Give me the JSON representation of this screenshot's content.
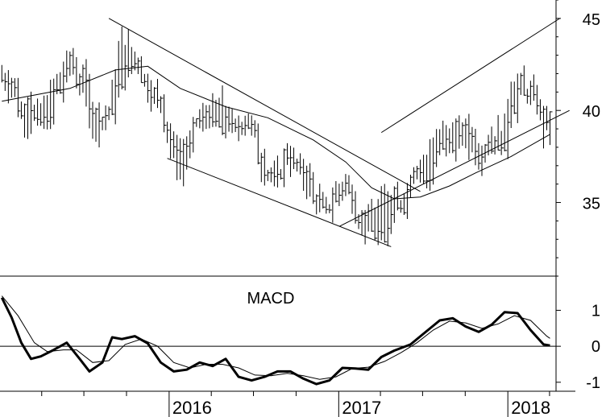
{
  "chart_data": [
    {
      "panel": "price",
      "type": "ohlc",
      "title": "",
      "ylim": [
        31,
        46
      ],
      "y_ticks": [
        35,
        40,
        45
      ],
      "x_range": [
        "2015-01-01",
        "2018-04-15"
      ],
      "price_path": [
        [
          "2015-01-05",
          42.0
        ],
        [
          "2015-02-02",
          40.8
        ],
        [
          "2015-03-02",
          39.2
        ],
        [
          "2015-04-06",
          40.2
        ],
        [
          "2015-05-04",
          41.6
        ],
        [
          "2015-06-01",
          42.8
        ],
        [
          "2015-06-29",
          41.2
        ],
        [
          "2015-07-27",
          38.4
        ],
        [
          "2015-08-24",
          40.0
        ],
        [
          "2015-09-21",
          44.0
        ],
        [
          "2015-10-19",
          43.0
        ],
        [
          "2015-11-16",
          41.2
        ],
        [
          "2015-12-14",
          40.2
        ],
        [
          "2016-01-04",
          37.8
        ],
        [
          "2016-02-01",
          36.6
        ],
        [
          "2016-02-29",
          39.4
        ],
        [
          "2016-03-28",
          39.8
        ],
        [
          "2016-04-25",
          40.5
        ],
        [
          "2016-05-23",
          38.8
        ],
        [
          "2016-06-20",
          39.8
        ],
        [
          "2016-07-18",
          37.0
        ],
        [
          "2016-08-15",
          36.2
        ],
        [
          "2016-09-12",
          37.6
        ],
        [
          "2016-10-10",
          36.6
        ],
        [
          "2016-11-07",
          35.2
        ],
        [
          "2016-12-05",
          34.6
        ],
        [
          "2016-12-26",
          35.6
        ],
        [
          "2017-01-16",
          36.2
        ],
        [
          "2017-02-06",
          34.8
        ],
        [
          "2017-02-27",
          33.2
        ],
        [
          "2017-03-20",
          34.4
        ],
        [
          "2017-04-17",
          35.6
        ],
        [
          "2017-05-15",
          35.2
        ],
        [
          "2017-06-12",
          36.4
        ],
        [
          "2017-07-10",
          37.2
        ],
        [
          "2017-08-07",
          39.0
        ],
        [
          "2017-09-04",
          38.6
        ],
        [
          "2017-10-02",
          38.4
        ],
        [
          "2017-10-30",
          37.6
        ],
        [
          "2017-11-27",
          38.6
        ],
        [
          "2017-12-25",
          39.2
        ],
        [
          "2018-01-08",
          41.6
        ],
        [
          "2018-02-05",
          41.2
        ],
        [
          "2018-03-05",
          40.6
        ],
        [
          "2018-03-19",
          38.5
        ],
        [
          "2018-04-02",
          38.9
        ]
      ],
      "moving_average": [
        [
          "2015-01-05",
          40.5
        ],
        [
          "2015-06-01",
          41.2
        ],
        [
          "2015-09-07",
          42.2
        ],
        [
          "2015-11-16",
          42.4
        ],
        [
          "2016-01-25",
          41.2
        ],
        [
          "2016-05-02",
          40.2
        ],
        [
          "2016-08-01",
          39.6
        ],
        [
          "2016-11-07",
          38.4
        ],
        [
          "2017-01-16",
          37.2
        ],
        [
          "2017-03-13",
          35.8
        ],
        [
          "2017-05-01",
          35.2
        ],
        [
          "2017-06-26",
          35.3
        ],
        [
          "2017-08-28",
          35.9
        ],
        [
          "2017-10-23",
          36.6
        ],
        [
          "2018-01-08",
          37.5
        ],
        [
          "2018-04-02",
          38.7
        ]
      ],
      "trendlines": [
        {
          "name": "downtrend-upper",
          "from": [
            "2015-08-24",
            45.0
          ],
          "to": [
            "2017-06-26",
            35.6
          ]
        },
        {
          "name": "downtrend-lower",
          "from": [
            "2015-12-28",
            37.4
          ],
          "to": [
            "2017-04-24",
            32.6
          ]
        },
        {
          "name": "uptrend-lower",
          "from": [
            "2017-01-02",
            33.7
          ],
          "to": [
            "2018-05-14",
            40.0
          ]
        },
        {
          "name": "uptrend-upper",
          "from": [
            "2017-04-03",
            38.8
          ],
          "to": [
            "2018-04-23",
            45.0
          ]
        }
      ]
    },
    {
      "panel": "macd",
      "type": "line",
      "title": "MACD",
      "ylim": [
        -1.25,
        1.95
      ],
      "y_ticks": [
        1,
        0,
        -1
      ],
      "zero_line": true,
      "series": [
        {
          "role": "macd",
          "points": [
            [
              "2015-01-05",
              1.35
            ],
            [
              "2015-01-26",
              0.8
            ],
            [
              "2015-02-16",
              0.1
            ],
            [
              "2015-03-09",
              -0.35
            ],
            [
              "2015-03-30",
              -0.28
            ],
            [
              "2015-04-27",
              -0.1
            ],
            [
              "2015-05-25",
              0.1
            ],
            [
              "2015-06-22",
              -0.35
            ],
            [
              "2015-07-13",
              -0.7
            ],
            [
              "2015-08-10",
              -0.45
            ],
            [
              "2015-08-31",
              0.25
            ],
            [
              "2015-09-21",
              0.2
            ],
            [
              "2015-10-19",
              0.28
            ],
            [
              "2015-11-16",
              0.08
            ],
            [
              "2015-12-14",
              -0.45
            ],
            [
              "2016-01-11",
              -0.7
            ],
            [
              "2016-02-08",
              -0.65
            ],
            [
              "2016-03-07",
              -0.45
            ],
            [
              "2016-04-04",
              -0.55
            ],
            [
              "2016-05-02",
              -0.35
            ],
            [
              "2016-05-30",
              -0.85
            ],
            [
              "2016-06-27",
              -0.95
            ],
            [
              "2016-07-25",
              -0.85
            ],
            [
              "2016-08-22",
              -0.7
            ],
            [
              "2016-09-19",
              -0.7
            ],
            [
              "2016-10-17",
              -0.9
            ],
            [
              "2016-11-14",
              -1.05
            ],
            [
              "2016-12-12",
              -0.95
            ],
            [
              "2017-01-09",
              -0.6
            ],
            [
              "2017-02-06",
              -0.62
            ],
            [
              "2017-03-06",
              -0.65
            ],
            [
              "2017-04-03",
              -0.3
            ],
            [
              "2017-05-01",
              -0.12
            ],
            [
              "2017-06-05",
              0.05
            ],
            [
              "2017-07-03",
              0.35
            ],
            [
              "2017-08-07",
              0.72
            ],
            [
              "2017-09-04",
              0.78
            ],
            [
              "2017-10-02",
              0.55
            ],
            [
              "2017-10-30",
              0.4
            ],
            [
              "2017-11-27",
              0.6
            ],
            [
              "2017-12-25",
              0.95
            ],
            [
              "2018-01-22",
              0.92
            ],
            [
              "2018-02-19",
              0.45
            ],
            [
              "2018-03-19",
              0.05
            ],
            [
              "2018-04-02",
              0.02
            ]
          ]
        },
        {
          "role": "signal",
          "points": [
            [
              "2015-01-05",
              1.4
            ],
            [
              "2015-02-09",
              0.85
            ],
            [
              "2015-03-16",
              0.1
            ],
            [
              "2015-04-13",
              -0.15
            ],
            [
              "2015-05-18",
              -0.1
            ],
            [
              "2015-06-15",
              -0.1
            ],
            [
              "2015-07-20",
              -0.45
            ],
            [
              "2015-08-24",
              -0.4
            ],
            [
              "2015-09-28",
              0.05
            ],
            [
              "2015-11-02",
              0.2
            ],
            [
              "2015-12-07",
              0.0
            ],
            [
              "2016-01-11",
              -0.45
            ],
            [
              "2016-02-15",
              -0.6
            ],
            [
              "2016-03-21",
              -0.5
            ],
            [
              "2016-04-25",
              -0.5
            ],
            [
              "2016-05-30",
              -0.6
            ],
            [
              "2016-07-04",
              -0.8
            ],
            [
              "2016-08-08",
              -0.82
            ],
            [
              "2016-09-12",
              -0.75
            ],
            [
              "2016-10-17",
              -0.82
            ],
            [
              "2016-11-21",
              -0.92
            ],
            [
              "2016-12-26",
              -0.85
            ],
            [
              "2017-01-30",
              -0.62
            ],
            [
              "2017-03-06",
              -0.58
            ],
            [
              "2017-04-10",
              -0.42
            ],
            [
              "2017-05-15",
              -0.18
            ],
            [
              "2017-06-19",
              0.1
            ],
            [
              "2017-07-24",
              0.45
            ],
            [
              "2017-08-28",
              0.7
            ],
            [
              "2017-10-02",
              0.65
            ],
            [
              "2017-11-06",
              0.5
            ],
            [
              "2017-12-11",
              0.62
            ],
            [
              "2018-01-15",
              0.85
            ],
            [
              "2018-02-19",
              0.72
            ],
            [
              "2018-03-26",
              0.28
            ],
            [
              "2018-04-02",
              0.22
            ]
          ]
        }
      ]
    }
  ],
  "x_axis": {
    "tick_labels": [
      "2016",
      "2017",
      "2018"
    ]
  }
}
